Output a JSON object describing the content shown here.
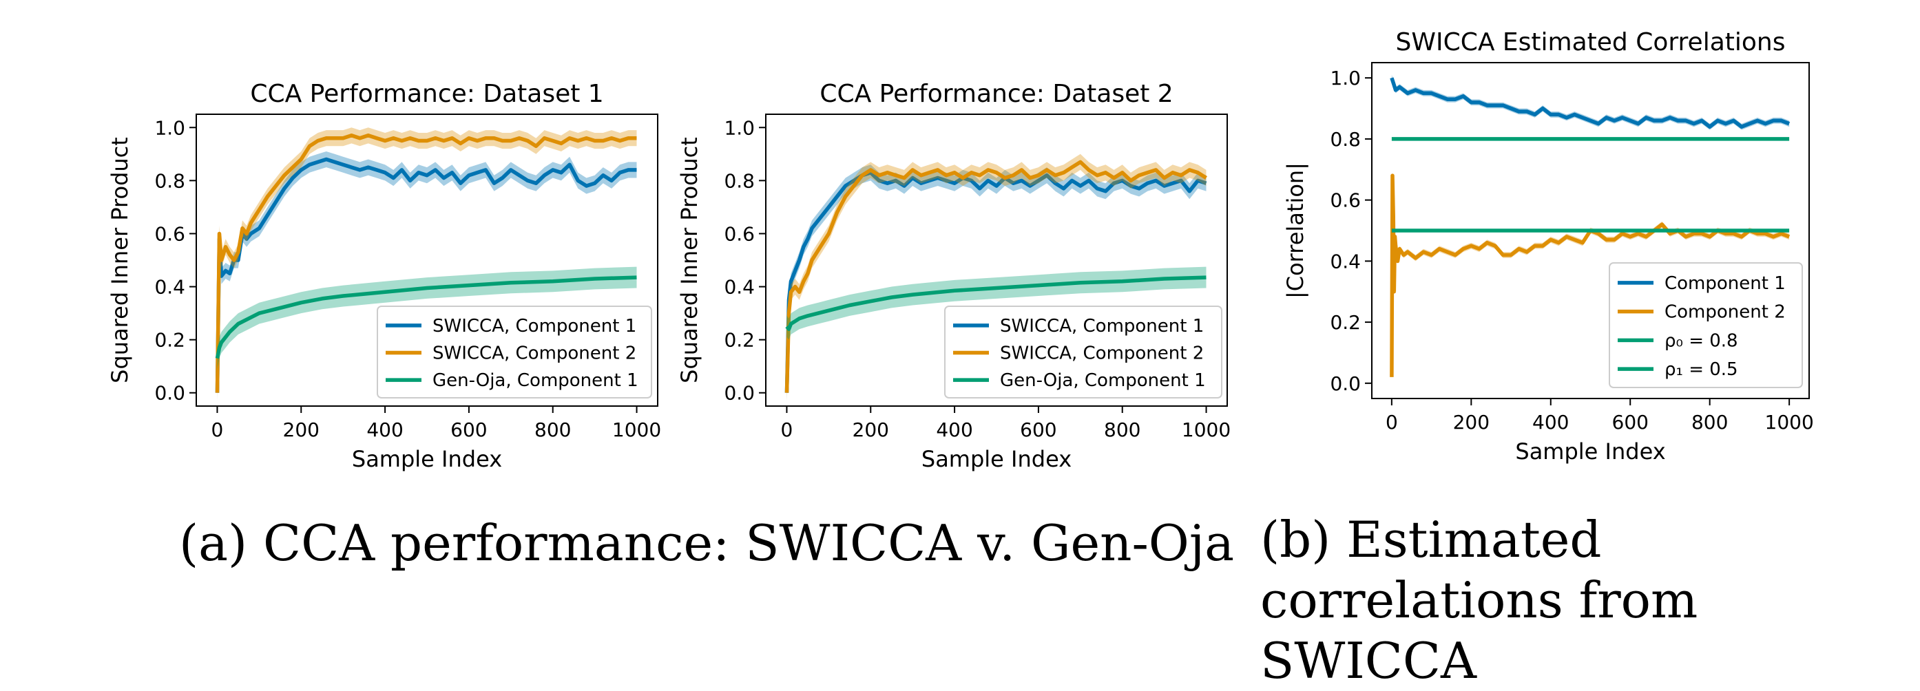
{
  "chart_data": [
    {
      "id": "p1",
      "type": "line",
      "title": "CCA Performance: Dataset 1",
      "xlabel": "Sample Index",
      "ylabel": "Squared Inner Product",
      "xlim": [
        -50,
        1050
      ],
      "ylim": [
        -0.05,
        1.05
      ],
      "xticks": [
        0,
        200,
        400,
        600,
        800,
        1000
      ],
      "yticks": [
        0.0,
        0.2,
        0.4,
        0.6,
        0.8,
        1.0
      ],
      "legend_loc": "lower-right",
      "series": [
        {
          "name": "SWICCA, Component 1",
          "color": "#0173b2",
          "band": 0.03,
          "x": [
            0,
            5,
            10,
            20,
            30,
            40,
            50,
            60,
            70,
            80,
            100,
            120,
            140,
            160,
            180,
            200,
            220,
            240,
            260,
            280,
            300,
            320,
            340,
            360,
            380,
            400,
            420,
            440,
            460,
            480,
            500,
            520,
            540,
            560,
            580,
            600,
            620,
            640,
            660,
            680,
            700,
            720,
            740,
            760,
            780,
            800,
            820,
            840,
            860,
            880,
            900,
            920,
            940,
            960,
            980,
            1000
          ],
          "values": [
            0.0,
            0.58,
            0.44,
            0.46,
            0.45,
            0.5,
            0.5,
            0.6,
            0.58,
            0.6,
            0.62,
            0.67,
            0.72,
            0.77,
            0.81,
            0.84,
            0.86,
            0.87,
            0.88,
            0.87,
            0.86,
            0.85,
            0.84,
            0.85,
            0.84,
            0.83,
            0.81,
            0.84,
            0.8,
            0.83,
            0.82,
            0.84,
            0.81,
            0.83,
            0.79,
            0.82,
            0.83,
            0.84,
            0.79,
            0.81,
            0.84,
            0.82,
            0.8,
            0.79,
            0.82,
            0.84,
            0.83,
            0.86,
            0.8,
            0.78,
            0.79,
            0.82,
            0.8,
            0.83,
            0.84,
            0.84
          ]
        },
        {
          "name": "SWICCA, Component 2",
          "color": "#de8f05",
          "band": 0.03,
          "x": [
            0,
            5,
            10,
            20,
            30,
            40,
            50,
            60,
            70,
            80,
            100,
            120,
            140,
            160,
            180,
            200,
            220,
            240,
            260,
            280,
            300,
            320,
            340,
            360,
            380,
            400,
            420,
            440,
            460,
            480,
            500,
            520,
            540,
            560,
            580,
            600,
            620,
            640,
            660,
            680,
            700,
            720,
            740,
            760,
            780,
            800,
            820,
            840,
            860,
            880,
            900,
            920,
            940,
            960,
            980,
            1000
          ],
          "values": [
            0.0,
            0.6,
            0.5,
            0.55,
            0.52,
            0.5,
            0.53,
            0.62,
            0.6,
            0.64,
            0.69,
            0.74,
            0.78,
            0.82,
            0.85,
            0.88,
            0.93,
            0.95,
            0.96,
            0.96,
            0.96,
            0.97,
            0.96,
            0.97,
            0.96,
            0.95,
            0.96,
            0.95,
            0.96,
            0.95,
            0.95,
            0.96,
            0.95,
            0.96,
            0.94,
            0.96,
            0.95,
            0.96,
            0.96,
            0.95,
            0.95,
            0.96,
            0.95,
            0.93,
            0.96,
            0.95,
            0.94,
            0.96,
            0.95,
            0.96,
            0.95,
            0.95,
            0.96,
            0.95,
            0.96,
            0.96
          ]
        },
        {
          "name": "Gen-Oja, Component 1",
          "color": "#029e73",
          "band": 0.04,
          "x": [
            0,
            5,
            10,
            20,
            30,
            50,
            75,
            100,
            150,
            200,
            250,
            300,
            400,
            500,
            600,
            700,
            800,
            900,
            1000
          ],
          "values": [
            0.13,
            0.17,
            0.19,
            0.21,
            0.23,
            0.26,
            0.28,
            0.3,
            0.32,
            0.34,
            0.355,
            0.365,
            0.38,
            0.395,
            0.405,
            0.415,
            0.42,
            0.43,
            0.435
          ]
        }
      ]
    },
    {
      "id": "p2",
      "type": "line",
      "title": "CCA Performance: Dataset 2",
      "xlabel": "Sample Index",
      "ylabel": "Squared Inner Product",
      "xlim": [
        -50,
        1050
      ],
      "ylim": [
        -0.05,
        1.05
      ],
      "xticks": [
        0,
        200,
        400,
        600,
        800,
        1000
      ],
      "yticks": [
        0.0,
        0.2,
        0.4,
        0.6,
        0.8,
        1.0
      ],
      "legend_loc": "lower-right",
      "series": [
        {
          "name": "SWICCA, Component 1",
          "color": "#0173b2",
          "band": 0.03,
          "x": [
            0,
            5,
            10,
            20,
            30,
            40,
            50,
            60,
            80,
            100,
            120,
            140,
            160,
            180,
            200,
            220,
            240,
            260,
            280,
            300,
            320,
            340,
            360,
            380,
            400,
            420,
            440,
            460,
            480,
            500,
            520,
            540,
            560,
            580,
            600,
            620,
            640,
            660,
            680,
            700,
            720,
            740,
            760,
            780,
            800,
            820,
            840,
            860,
            880,
            900,
            920,
            940,
            960,
            980,
            1000
          ],
          "values": [
            0.0,
            0.35,
            0.42,
            0.46,
            0.5,
            0.55,
            0.58,
            0.62,
            0.66,
            0.7,
            0.74,
            0.78,
            0.8,
            0.82,
            0.83,
            0.8,
            0.79,
            0.8,
            0.78,
            0.81,
            0.79,
            0.8,
            0.81,
            0.8,
            0.79,
            0.81,
            0.8,
            0.77,
            0.8,
            0.78,
            0.81,
            0.79,
            0.8,
            0.78,
            0.8,
            0.82,
            0.79,
            0.77,
            0.8,
            0.78,
            0.8,
            0.77,
            0.76,
            0.79,
            0.8,
            0.78,
            0.77,
            0.79,
            0.8,
            0.78,
            0.79,
            0.8,
            0.76,
            0.8,
            0.79
          ]
        },
        {
          "name": "SWICCA, Component 2",
          "color": "#de8f05",
          "band": 0.03,
          "x": [
            0,
            5,
            10,
            20,
            30,
            40,
            50,
            60,
            80,
            100,
            120,
            140,
            160,
            180,
            200,
            220,
            240,
            260,
            280,
            300,
            320,
            340,
            360,
            380,
            400,
            420,
            440,
            460,
            480,
            500,
            520,
            540,
            560,
            580,
            600,
            620,
            640,
            660,
            680,
            700,
            720,
            740,
            760,
            780,
            800,
            820,
            840,
            860,
            880,
            900,
            920,
            940,
            960,
            980,
            1000
          ],
          "values": [
            0.0,
            0.3,
            0.38,
            0.4,
            0.38,
            0.42,
            0.45,
            0.5,
            0.55,
            0.6,
            0.68,
            0.74,
            0.78,
            0.82,
            0.84,
            0.82,
            0.83,
            0.82,
            0.81,
            0.84,
            0.82,
            0.83,
            0.84,
            0.82,
            0.83,
            0.81,
            0.83,
            0.82,
            0.84,
            0.83,
            0.81,
            0.82,
            0.84,
            0.81,
            0.82,
            0.84,
            0.82,
            0.83,
            0.85,
            0.87,
            0.84,
            0.82,
            0.83,
            0.81,
            0.83,
            0.8,
            0.82,
            0.83,
            0.84,
            0.81,
            0.83,
            0.82,
            0.84,
            0.83,
            0.81
          ]
        },
        {
          "name": "Gen-Oja, Component 1",
          "color": "#029e73",
          "band": 0.04,
          "x": [
            0,
            5,
            10,
            20,
            30,
            50,
            75,
            100,
            150,
            200,
            250,
            300,
            400,
            500,
            600,
            700,
            800,
            900,
            1000
          ],
          "values": [
            0.25,
            0.24,
            0.26,
            0.27,
            0.28,
            0.29,
            0.3,
            0.31,
            0.33,
            0.345,
            0.36,
            0.37,
            0.385,
            0.395,
            0.405,
            0.415,
            0.42,
            0.43,
            0.435
          ]
        }
      ]
    },
    {
      "id": "p3",
      "type": "line",
      "title": "SWICCA Estimated Correlations",
      "xlabel": "Sample Index",
      "ylabel": "|Correlation|",
      "xlim": [
        -50,
        1050
      ],
      "ylim": [
        -0.05,
        1.05
      ],
      "xticks": [
        0,
        200,
        400,
        600,
        800,
        1000
      ],
      "yticks": [
        0.0,
        0.2,
        0.4,
        0.6,
        0.8,
        1.0
      ],
      "legend_loc": "lower-right",
      "series": [
        {
          "name": "Component 1",
          "color": "#0173b2",
          "band": 0.01,
          "x": [
            0,
            5,
            10,
            20,
            40,
            60,
            80,
            100,
            120,
            140,
            160,
            180,
            200,
            220,
            240,
            260,
            280,
            300,
            320,
            340,
            360,
            380,
            400,
            420,
            440,
            460,
            480,
            500,
            520,
            540,
            560,
            580,
            600,
            620,
            640,
            660,
            680,
            700,
            720,
            740,
            760,
            780,
            800,
            820,
            840,
            860,
            880,
            900,
            920,
            940,
            960,
            980,
            1000
          ],
          "values": [
            1.0,
            0.98,
            0.96,
            0.97,
            0.95,
            0.96,
            0.95,
            0.95,
            0.94,
            0.93,
            0.93,
            0.94,
            0.92,
            0.92,
            0.91,
            0.91,
            0.91,
            0.9,
            0.89,
            0.89,
            0.88,
            0.9,
            0.88,
            0.88,
            0.87,
            0.88,
            0.87,
            0.86,
            0.85,
            0.87,
            0.86,
            0.87,
            0.86,
            0.85,
            0.87,
            0.86,
            0.86,
            0.87,
            0.86,
            0.86,
            0.85,
            0.86,
            0.84,
            0.86,
            0.85,
            0.86,
            0.84,
            0.85,
            0.86,
            0.85,
            0.86,
            0.86,
            0.85
          ]
        },
        {
          "name": "Component 2",
          "color": "#de8f05",
          "band": 0.01,
          "x": [
            0,
            2,
            4,
            6,
            8,
            10,
            15,
            20,
            30,
            40,
            60,
            80,
            100,
            120,
            140,
            160,
            180,
            200,
            220,
            240,
            260,
            280,
            300,
            320,
            340,
            360,
            380,
            400,
            420,
            440,
            460,
            480,
            500,
            520,
            540,
            560,
            580,
            600,
            620,
            640,
            660,
            680,
            700,
            720,
            740,
            760,
            780,
            800,
            820,
            840,
            860,
            880,
            900,
            920,
            940,
            960,
            980,
            1000
          ],
          "values": [
            0.02,
            0.68,
            0.55,
            0.3,
            0.48,
            0.45,
            0.4,
            0.44,
            0.42,
            0.43,
            0.41,
            0.43,
            0.42,
            0.44,
            0.43,
            0.42,
            0.44,
            0.45,
            0.44,
            0.46,
            0.45,
            0.42,
            0.42,
            0.44,
            0.43,
            0.45,
            0.45,
            0.47,
            0.46,
            0.48,
            0.47,
            0.46,
            0.5,
            0.49,
            0.47,
            0.47,
            0.49,
            0.48,
            0.49,
            0.48,
            0.5,
            0.52,
            0.49,
            0.5,
            0.48,
            0.49,
            0.49,
            0.48,
            0.5,
            0.49,
            0.49,
            0.48,
            0.5,
            0.49,
            0.49,
            0.48,
            0.49,
            0.48
          ]
        },
        {
          "name": "ρ₀ = 0.8",
          "color": "#029e73",
          "band": 0,
          "x": [
            0,
            1000
          ],
          "values": [
            0.8,
            0.8
          ]
        },
        {
          "name": "ρ₁ = 0.5",
          "color": "#029e73",
          "band": 0,
          "x": [
            0,
            1000
          ],
          "values": [
            0.5,
            0.5
          ]
        }
      ]
    }
  ],
  "captions": {
    "a": "(a) CCA performance: SWICCA v. Gen-Oja",
    "b": "(b) Estimated correlations from SWICCA"
  }
}
